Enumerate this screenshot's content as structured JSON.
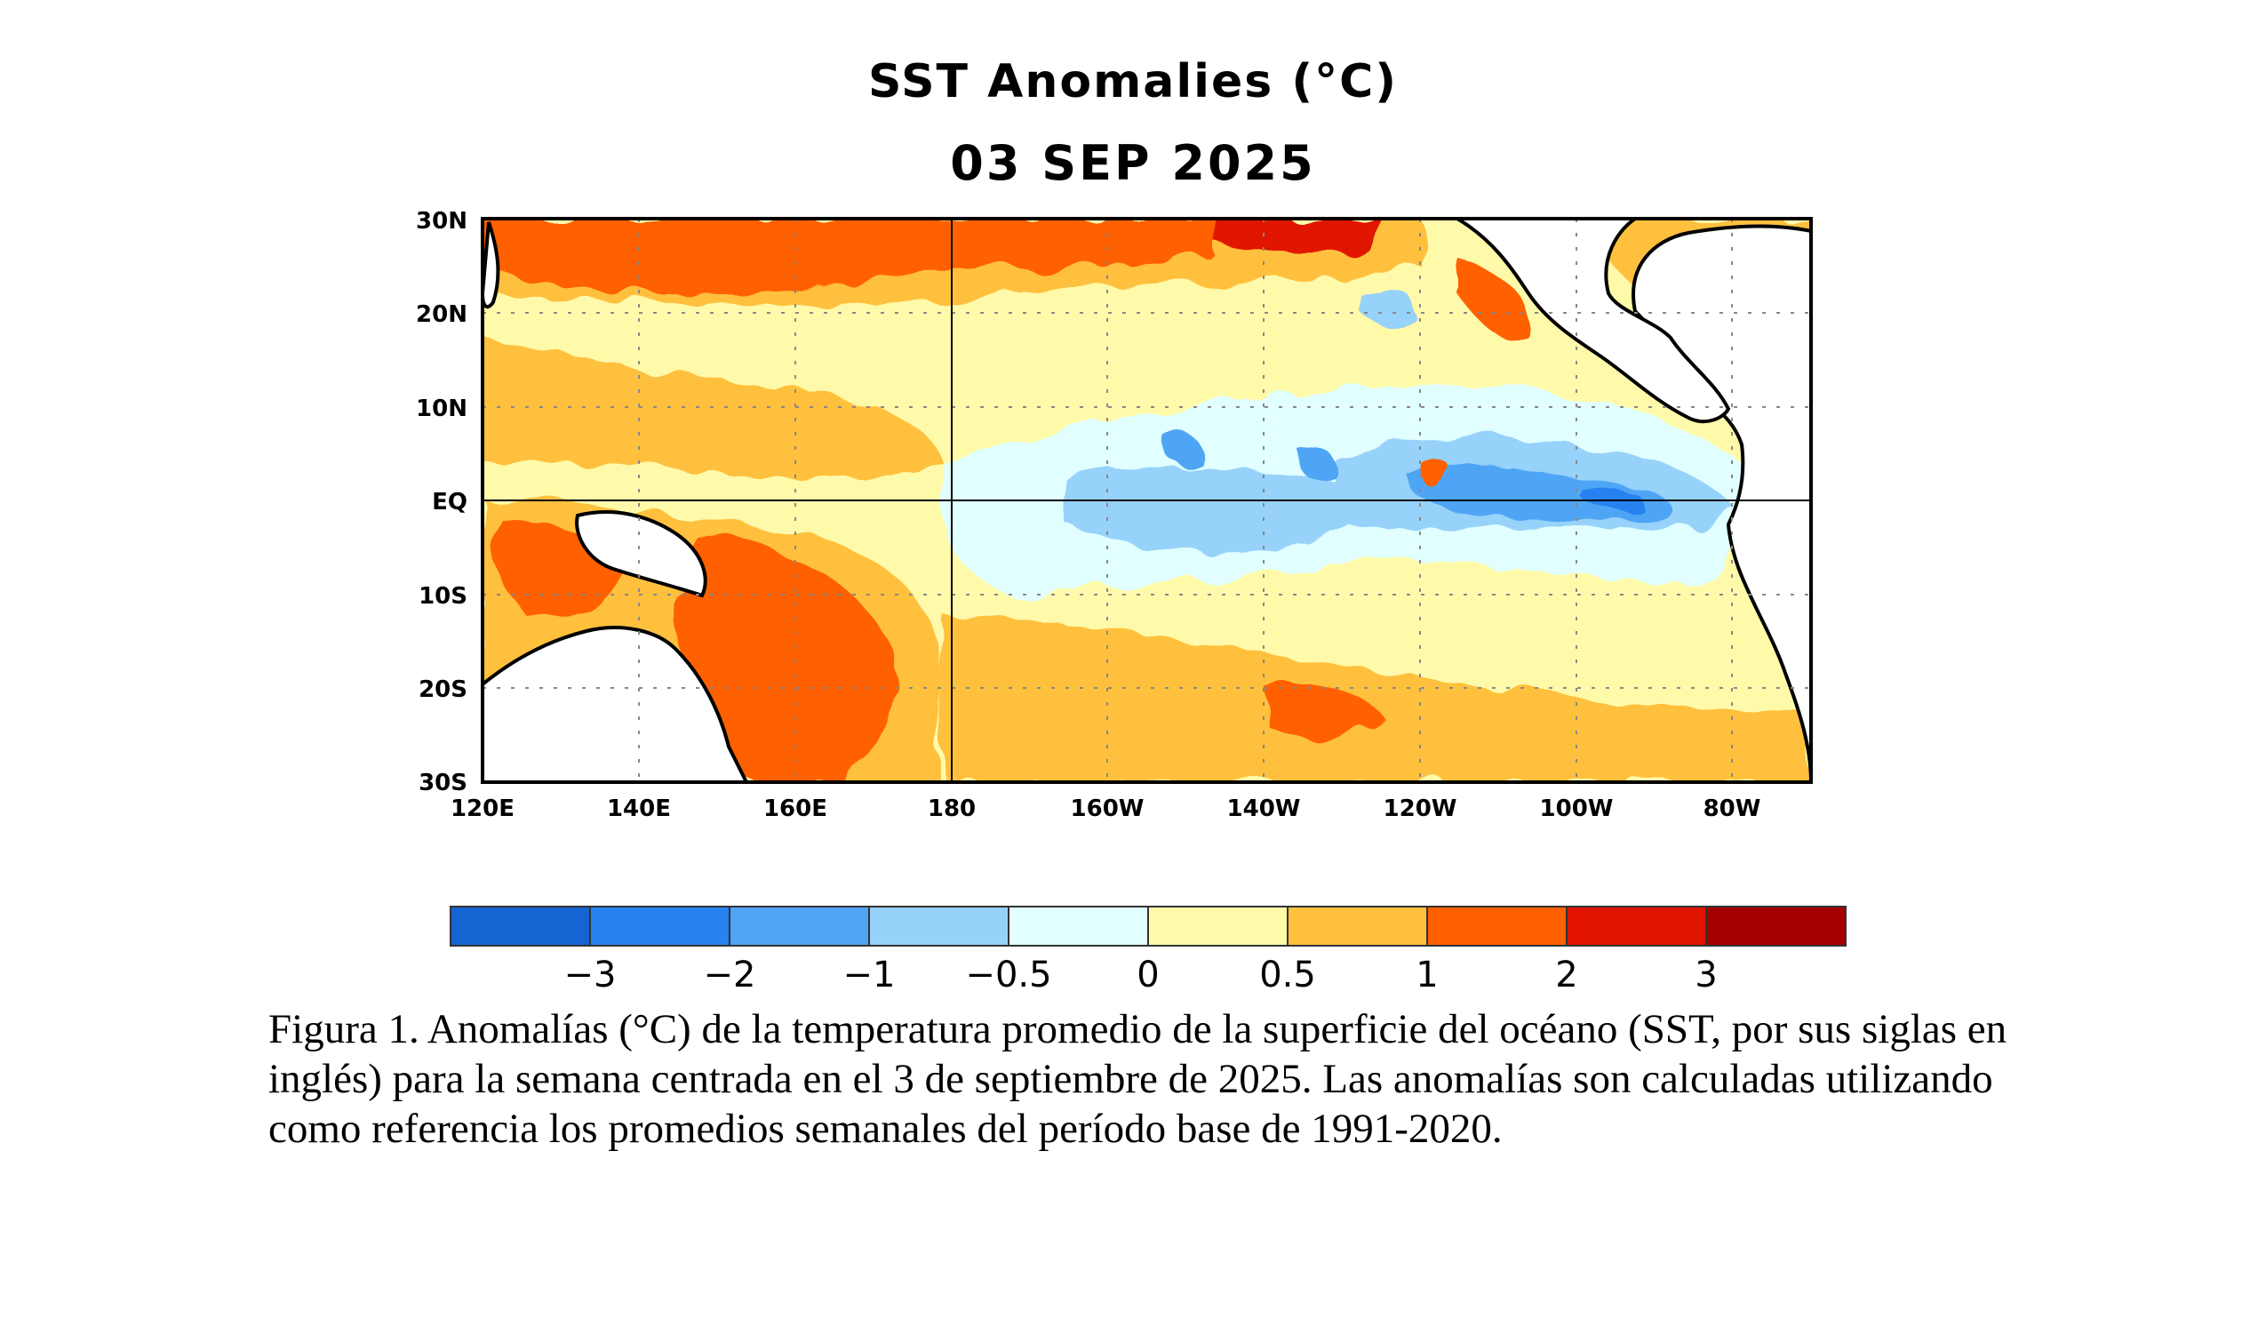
{
  "title": "SST Anomalies (°C)",
  "date": "03 SEP 2025",
  "map": {
    "lat_labels": [
      "30N",
      "20N",
      "10N",
      "EQ",
      "10S",
      "20S",
      "30S"
    ],
    "lon_labels": [
      "120E",
      "140E",
      "160E",
      "180",
      "160W",
      "140W",
      "120W",
      "100W",
      "80W"
    ]
  },
  "colorbar": {
    "colors": [
      "#1464d2",
      "#2882f0",
      "#50a5f5",
      "#96d2fa",
      "#e1ffff",
      "#fffaaa",
      "#ffc03c",
      "#ff6000",
      "#e11400",
      "#a50000"
    ],
    "tick_labels": [
      "−3",
      "−2",
      "−1",
      "−0.5",
      "0",
      "0.5",
      "1",
      "2",
      "3"
    ]
  },
  "caption": "Figura 1. Anomalías (°C) de la temperatura promedio de la superficie del océano (SST, por sus siglas en inglés) para la semana centrada en el 3 de septiembre de 2025. Las anomalías son calculadas utilizando como referencia los promedios semanales del período base de 1991-2020."
}
